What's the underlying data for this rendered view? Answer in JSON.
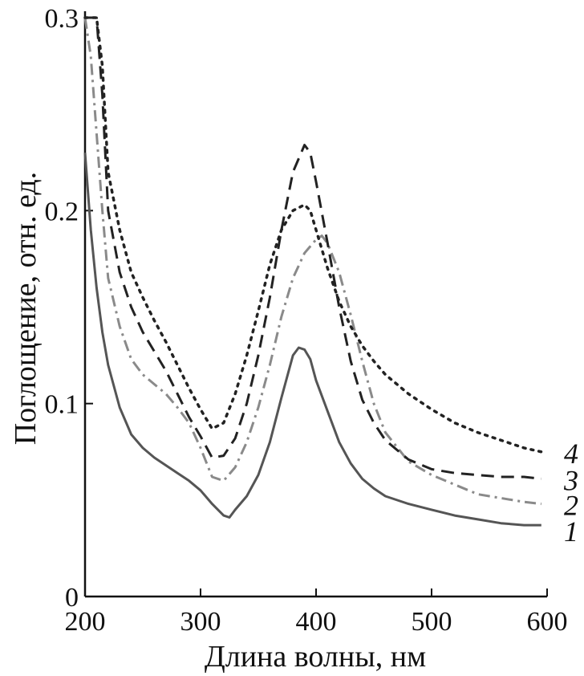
{
  "chart_data": {
    "type": "line",
    "title": "",
    "xlabel": "Длина волны, нм",
    "ylabel": "Поглощение, отн. ед.",
    "xlim": [
      200,
      600
    ],
    "ylim": [
      0,
      0.3
    ],
    "xticks": [
      200,
      300,
      400,
      500,
      600
    ],
    "xtick_labels": [
      "200",
      "300",
      "400",
      "500",
      "600"
    ],
    "yticks": [
      0,
      0.1,
      0.2,
      0.3
    ],
    "ytick_labels": [
      "0",
      "0.1",
      "0.2",
      "0.3"
    ],
    "grid": false,
    "series": [
      {
        "name": "1",
        "style": "solid",
        "color": "#555555",
        "x": [
          200,
          205,
          210,
          215,
          220,
          230,
          240,
          250,
          260,
          270,
          280,
          290,
          300,
          310,
          320,
          325,
          330,
          340,
          350,
          360,
          370,
          380,
          385,
          390,
          395,
          400,
          410,
          420,
          430,
          440,
          450,
          460,
          480,
          500,
          520,
          540,
          560,
          580,
          595
        ],
        "y": [
          0.23,
          0.19,
          0.16,
          0.137,
          0.12,
          0.098,
          0.084,
          0.077,
          0.072,
          0.068,
          0.064,
          0.06,
          0.055,
          0.048,
          0.042,
          0.041,
          0.045,
          0.052,
          0.063,
          0.08,
          0.103,
          0.125,
          0.129,
          0.128,
          0.123,
          0.112,
          0.096,
          0.08,
          0.069,
          0.061,
          0.056,
          0.052,
          0.048,
          0.045,
          0.042,
          0.04,
          0.038,
          0.037,
          0.037
        ]
      },
      {
        "name": "2",
        "style": "dash-dot",
        "color": "#8a8a8a",
        "x": [
          200,
          205,
          210,
          215,
          220,
          230,
          240,
          250,
          260,
          270,
          280,
          290,
          300,
          310,
          320,
          330,
          340,
          350,
          360,
          370,
          380,
          390,
          400,
          405,
          410,
          420,
          430,
          440,
          450,
          460,
          480,
          500,
          520,
          540,
          560,
          580,
          595
        ],
        "y": [
          0.3,
          0.28,
          0.24,
          0.2,
          0.165,
          0.14,
          0.123,
          0.115,
          0.11,
          0.105,
          0.098,
          0.09,
          0.077,
          0.062,
          0.06,
          0.067,
          0.08,
          0.098,
          0.12,
          0.145,
          0.165,
          0.178,
          0.185,
          0.187,
          0.183,
          0.168,
          0.146,
          0.122,
          0.1,
          0.085,
          0.07,
          0.063,
          0.058,
          0.053,
          0.051,
          0.049,
          0.048
        ]
      },
      {
        "name": "3",
        "style": "dashed",
        "color": "#222222",
        "x": [
          200,
          205,
          210,
          215,
          220,
          230,
          240,
          250,
          260,
          270,
          280,
          290,
          300,
          310,
          320,
          330,
          340,
          350,
          360,
          370,
          380,
          390,
          395,
          400,
          410,
          420,
          430,
          440,
          450,
          460,
          480,
          500,
          520,
          540,
          560,
          580,
          595
        ],
        "y": [
          0.3,
          0.3,
          0.3,
          0.26,
          0.2,
          0.168,
          0.15,
          0.137,
          0.127,
          0.117,
          0.105,
          0.093,
          0.083,
          0.072,
          0.073,
          0.082,
          0.1,
          0.125,
          0.155,
          0.19,
          0.22,
          0.234,
          0.23,
          0.215,
          0.183,
          0.15,
          0.122,
          0.102,
          0.09,
          0.081,
          0.071,
          0.066,
          0.064,
          0.063,
          0.062,
          0.062,
          0.061
        ]
      },
      {
        "name": "4",
        "style": "dotted",
        "color": "#222222",
        "x": [
          200,
          205,
          210,
          215,
          220,
          230,
          240,
          250,
          260,
          270,
          280,
          290,
          300,
          310,
          320,
          330,
          340,
          350,
          360,
          370,
          380,
          390,
          395,
          400,
          410,
          420,
          430,
          440,
          450,
          460,
          480,
          500,
          520,
          540,
          560,
          580,
          595
        ],
        "y": [
          0.3,
          0.3,
          0.3,
          0.275,
          0.22,
          0.19,
          0.168,
          0.155,
          0.143,
          0.132,
          0.12,
          0.108,
          0.097,
          0.087,
          0.09,
          0.105,
          0.125,
          0.148,
          0.172,
          0.19,
          0.2,
          0.203,
          0.2,
          0.19,
          0.17,
          0.153,
          0.14,
          0.13,
          0.122,
          0.115,
          0.105,
          0.097,
          0.09,
          0.085,
          0.081,
          0.077,
          0.075
        ]
      }
    ]
  }
}
